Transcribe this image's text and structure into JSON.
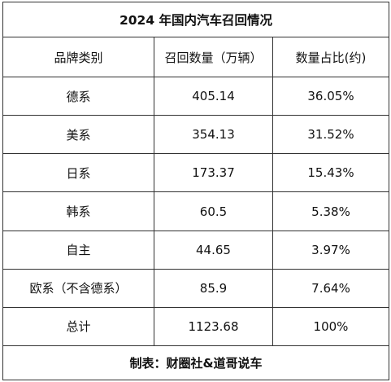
{
  "title": "2024 年国内汽车召回情况",
  "headers": [
    "品牌类别",
    "召回数量（万辆）",
    "数量占比(约)"
  ],
  "rows": [
    {
      "brand": "德系",
      "count": "405.14",
      "share": "36.05%"
    },
    {
      "brand": "美系",
      "count": "354.13",
      "share": "31.52%"
    },
    {
      "brand": "日系",
      "count": "173.37",
      "share": "15.43%"
    },
    {
      "brand": "韩系",
      "count": "60.5",
      "share": "5.38%"
    },
    {
      "brand": "自主",
      "count": "44.65",
      "share": "3.97%"
    },
    {
      "brand": "欧系（不含德系）",
      "count": "85.9",
      "share": "7.64%"
    },
    {
      "brand": "总计",
      "count": "1123.68",
      "share": "100%"
    }
  ],
  "footer": "制表：财圈社&道哥说车"
}
